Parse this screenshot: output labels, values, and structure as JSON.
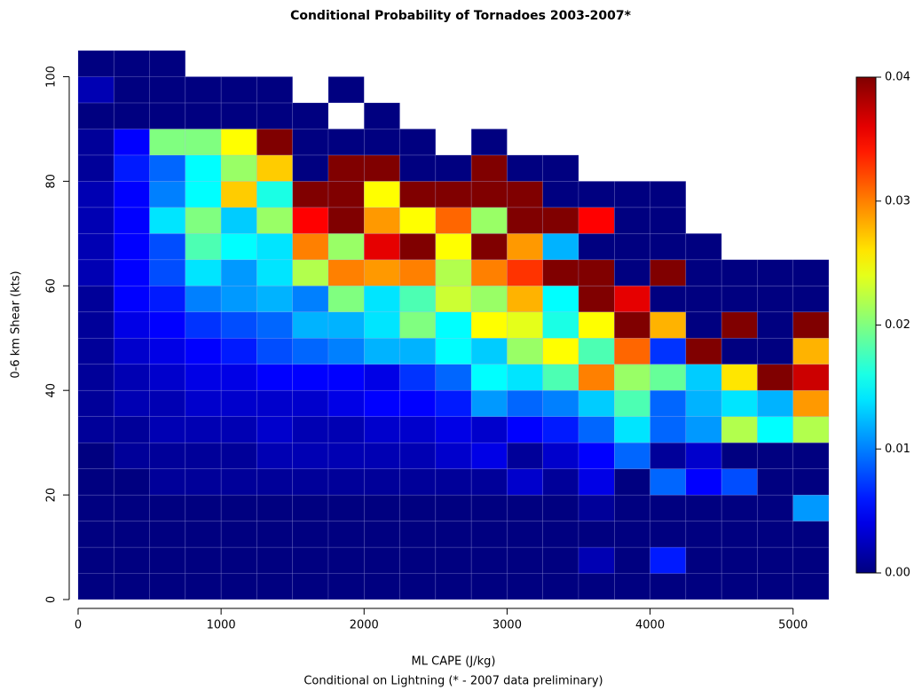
{
  "chart_data": {
    "type": "heatmap",
    "title": "Conditional Probability of Tornadoes 2003-2007*",
    "x_label": "ML CAPE (J/kg)",
    "subtitle": "Conditional on Lightning (* - 2007 data preliminary)",
    "y_label": "0-6 km Shear (kts)",
    "colormap": "jet",
    "zlim": [
      0,
      0.04
    ],
    "zticks": [
      {
        "value": 0,
        "label": "0.00"
      },
      {
        "value": 0.01,
        "label": "0.01"
      },
      {
        "value": 0.02,
        "label": "0.02"
      },
      {
        "value": 0.03,
        "label": "0.03"
      },
      {
        "value": 0.04,
        "label": "0.04"
      }
    ],
    "xlim": [
      0,
      5250
    ],
    "ylim": [
      0,
      105
    ],
    "xticks": [
      0,
      1000,
      2000,
      3000,
      4000,
      5000
    ],
    "yticks": [
      0,
      20,
      40,
      60,
      80,
      100
    ],
    "x_bins": [
      0,
      250,
      500,
      750,
      1000,
      1250,
      1500,
      1750,
      2000,
      2250,
      2500,
      2750,
      3000,
      3250,
      3500,
      3750,
      4000,
      4250,
      4500,
      4750,
      5000,
      5250
    ],
    "y_bins": [
      0,
      5,
      10,
      15,
      20,
      25,
      30,
      35,
      40,
      45,
      50,
      55,
      60,
      65,
      70,
      75,
      80,
      85,
      90,
      95,
      100,
      105
    ],
    "z": [
      [
        0,
        0,
        0,
        0,
        0,
        0,
        0,
        0,
        0,
        0,
        0,
        0,
        0,
        0,
        0,
        0,
        0,
        0,
        0,
        0,
        0
      ],
      [
        0,
        0,
        0,
        0,
        0,
        0,
        0,
        0,
        0,
        0,
        0,
        0,
        0,
        0,
        0.002,
        0,
        0.006,
        0,
        0,
        0,
        0
      ],
      [
        0,
        0,
        0,
        0,
        0,
        0,
        0,
        0,
        0,
        0,
        0,
        0,
        0,
        0,
        0,
        0,
        0,
        0,
        0,
        0,
        0
      ],
      [
        0,
        0,
        0,
        0,
        0,
        0,
        0,
        0,
        0,
        0,
        0,
        0,
        0,
        0,
        0.001,
        0,
        0,
        0,
        0,
        0,
        0.011
      ],
      [
        0,
        0,
        0.001,
        0.001,
        0.001,
        0.001,
        0.001,
        0.001,
        0.001,
        0.001,
        0.001,
        0.001,
        0.003,
        0.001,
        0.004,
        0,
        0.009,
        0.005,
        0.008,
        0,
        0
      ],
      [
        0,
        0.001,
        0.001,
        0.001,
        0.001,
        0.002,
        0.002,
        0.002,
        0.002,
        0.002,
        0.003,
        0.004,
        0.001,
        0.003,
        0.005,
        0.009,
        0.001,
        0.003,
        0,
        0,
        0
      ],
      [
        0.001,
        0.001,
        0.002,
        0.002,
        0.002,
        0.003,
        0.002,
        0.002,
        0.003,
        0.003,
        0.004,
        0.003,
        0.005,
        0.006,
        0.009,
        0.014,
        0.009,
        0.011,
        0.022,
        0.015,
        0.022
      ],
      [
        0.001,
        0.002,
        0.002,
        0.003,
        0.003,
        0.003,
        0.003,
        0.004,
        0.005,
        0.005,
        0.006,
        0.011,
        0.009,
        0.01,
        0.013,
        0.018,
        0.009,
        0.012,
        0.014,
        0.012,
        0.029
      ],
      [
        0.001,
        0.002,
        0.003,
        0.004,
        0.004,
        0.005,
        0.005,
        0.005,
        0.004,
        0.007,
        0.009,
        0.015,
        0.014,
        0.018,
        0.03,
        0.021,
        0.019,
        0.013,
        0.026,
        0.04,
        0.037
      ],
      [
        0.001,
        0.003,
        0.004,
        0.005,
        0.006,
        0.008,
        0.009,
        0.01,
        0.012,
        0.012,
        0.015,
        0.013,
        0.021,
        0.025,
        0.018,
        0.031,
        0.007,
        0.04,
        0,
        0,
        0.028
      ],
      [
        0.001,
        0.004,
        0.005,
        0.007,
        0.008,
        0.009,
        0.012,
        0.012,
        0.014,
        0.02,
        0.015,
        0.025,
        0.024,
        0.016,
        0.025,
        0.04,
        0.028,
        0,
        0.04,
        0,
        0.04
      ],
      [
        0.001,
        0.005,
        0.006,
        0.01,
        0.011,
        0.012,
        0.01,
        0.02,
        0.014,
        0.018,
        0.023,
        0.021,
        0.028,
        0.015,
        0.04,
        0.036,
        0,
        0,
        0,
        0,
        0
      ],
      [
        0.002,
        0.005,
        0.008,
        0.014,
        0.011,
        0.014,
        0.022,
        0.03,
        0.029,
        0.03,
        0.022,
        0.03,
        0.033,
        0.04,
        0.04,
        0,
        0.04,
        0,
        0,
        0,
        0
      ],
      [
        0.002,
        0.005,
        0.008,
        0.018,
        0.015,
        0.014,
        0.03,
        0.021,
        0.036,
        0.04,
        0.025,
        0.04,
        0.029,
        0.012,
        0,
        0,
        0,
        0,
        null,
        null,
        null
      ],
      [
        0.002,
        0.005,
        0.014,
        0.02,
        0.013,
        0.021,
        0.035,
        0.04,
        0.029,
        0.025,
        0.031,
        0.021,
        0.04,
        0.04,
        0.035,
        0,
        0,
        null,
        null,
        null,
        null
      ],
      [
        0.002,
        0.005,
        0.01,
        0.015,
        0.027,
        0.016,
        0.04,
        0.04,
        0.025,
        0.04,
        0.04,
        0.04,
        0.04,
        0,
        0,
        0,
        0,
        null,
        null,
        null,
        null
      ],
      [
        0.001,
        0.006,
        0.009,
        0.015,
        0.021,
        0.027,
        0,
        0.04,
        0.04,
        0,
        0,
        0.04,
        0,
        0,
        null,
        null,
        null,
        null,
        null,
        null,
        null
      ],
      [
        0.001,
        0.005,
        0.02,
        0.02,
        0.025,
        0.04,
        0,
        0,
        0,
        0,
        null,
        0,
        null,
        null,
        null,
        null,
        null,
        null,
        null,
        null,
        null
      ],
      [
        0,
        0,
        0,
        0,
        0,
        0,
        0,
        null,
        0,
        null,
        null,
        null,
        null,
        null,
        null,
        null,
        null,
        null,
        null,
        null,
        null
      ],
      [
        0.002,
        0,
        0,
        0,
        0,
        0,
        null,
        0,
        null,
        null,
        null,
        null,
        null,
        null,
        null,
        null,
        null,
        null,
        null,
        null,
        null
      ],
      [
        0,
        0,
        0,
        null,
        null,
        null,
        null,
        null,
        null,
        null,
        null,
        null,
        null,
        null,
        null,
        null,
        null,
        null,
        null,
        null,
        null
      ]
    ]
  }
}
